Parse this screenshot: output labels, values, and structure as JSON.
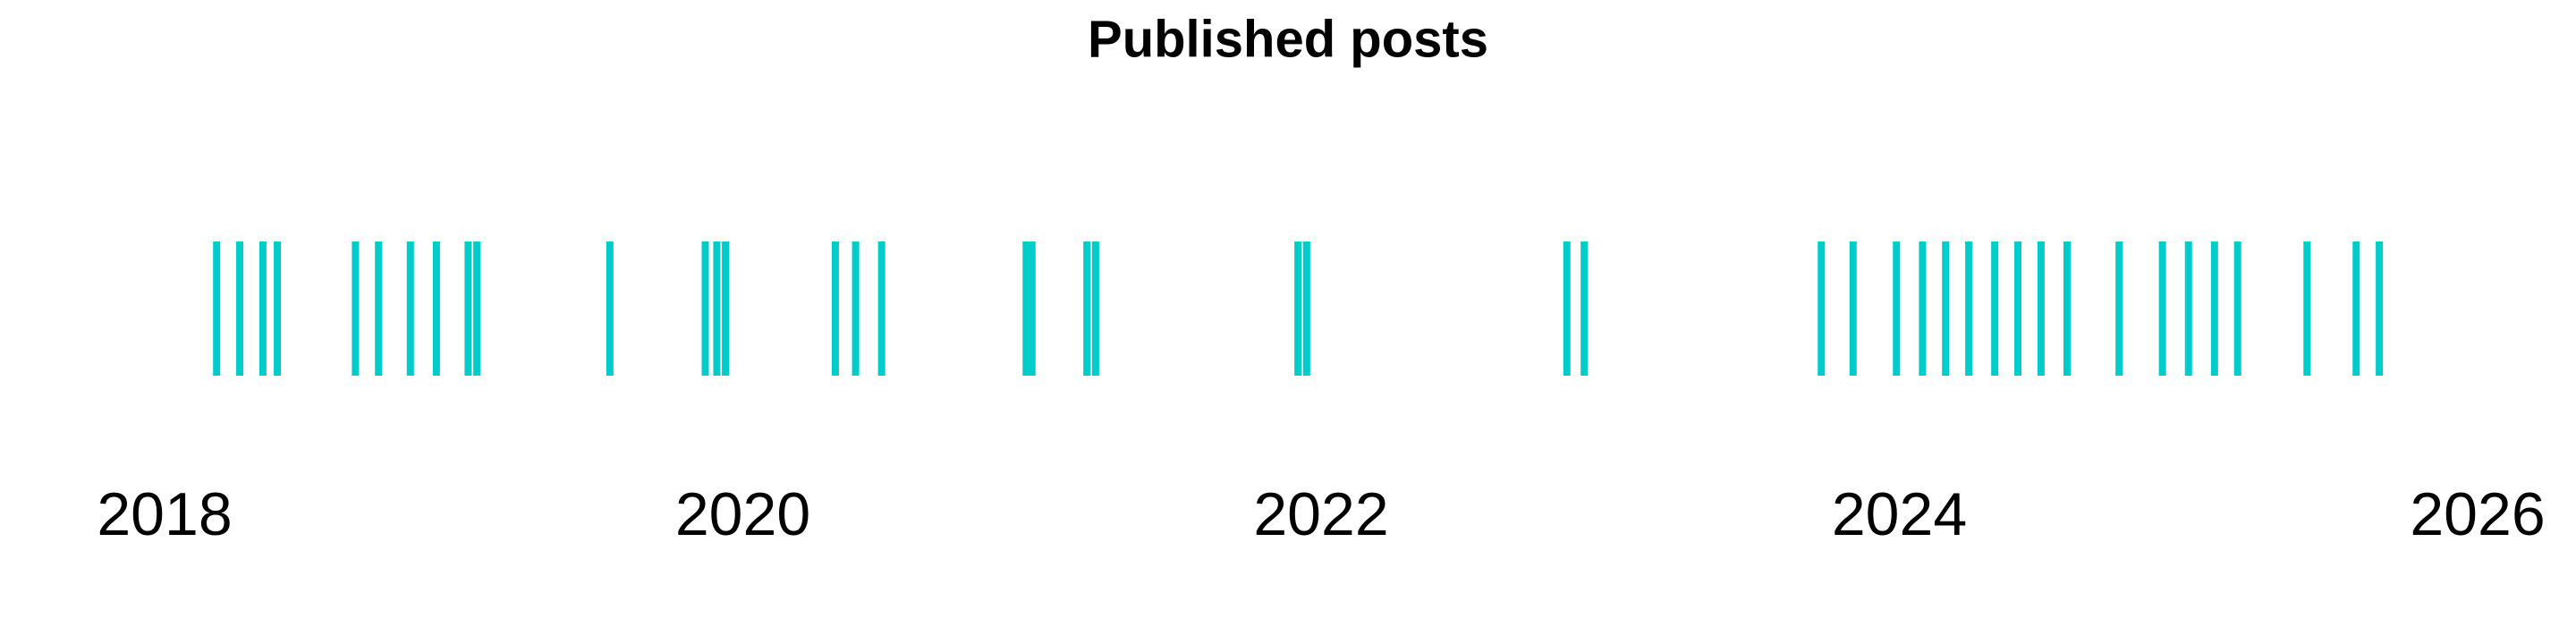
{
  "chart_data": {
    "type": "eventplot",
    "title": "Published posts",
    "x": [
      2018.18,
      2018.26,
      2018.34,
      2018.39,
      2018.66,
      2018.74,
      2018.85,
      2018.94,
      2019.05,
      2019.08,
      2019.54,
      2019.87,
      2019.91,
      2019.94,
      2020.32,
      2020.39,
      2020.48,
      2020.98,
      2021.0,
      2021.19,
      2021.22,
      2021.92,
      2021.95,
      2022.85,
      2022.91,
      2023.73,
      2023.84,
      2023.99,
      2024.08,
      2024.16,
      2024.24,
      2024.33,
      2024.41,
      2024.49,
      2024.58,
      2024.76,
      2024.91,
      2025.0,
      2025.09,
      2025.17,
      2025.41,
      2025.58,
      2025.66
    ],
    "color": "#00cccc",
    "xlim": [
      2018,
      2026
    ],
    "xticks": [
      2018,
      2020,
      2022,
      2024,
      2026
    ],
    "grid": false
  }
}
